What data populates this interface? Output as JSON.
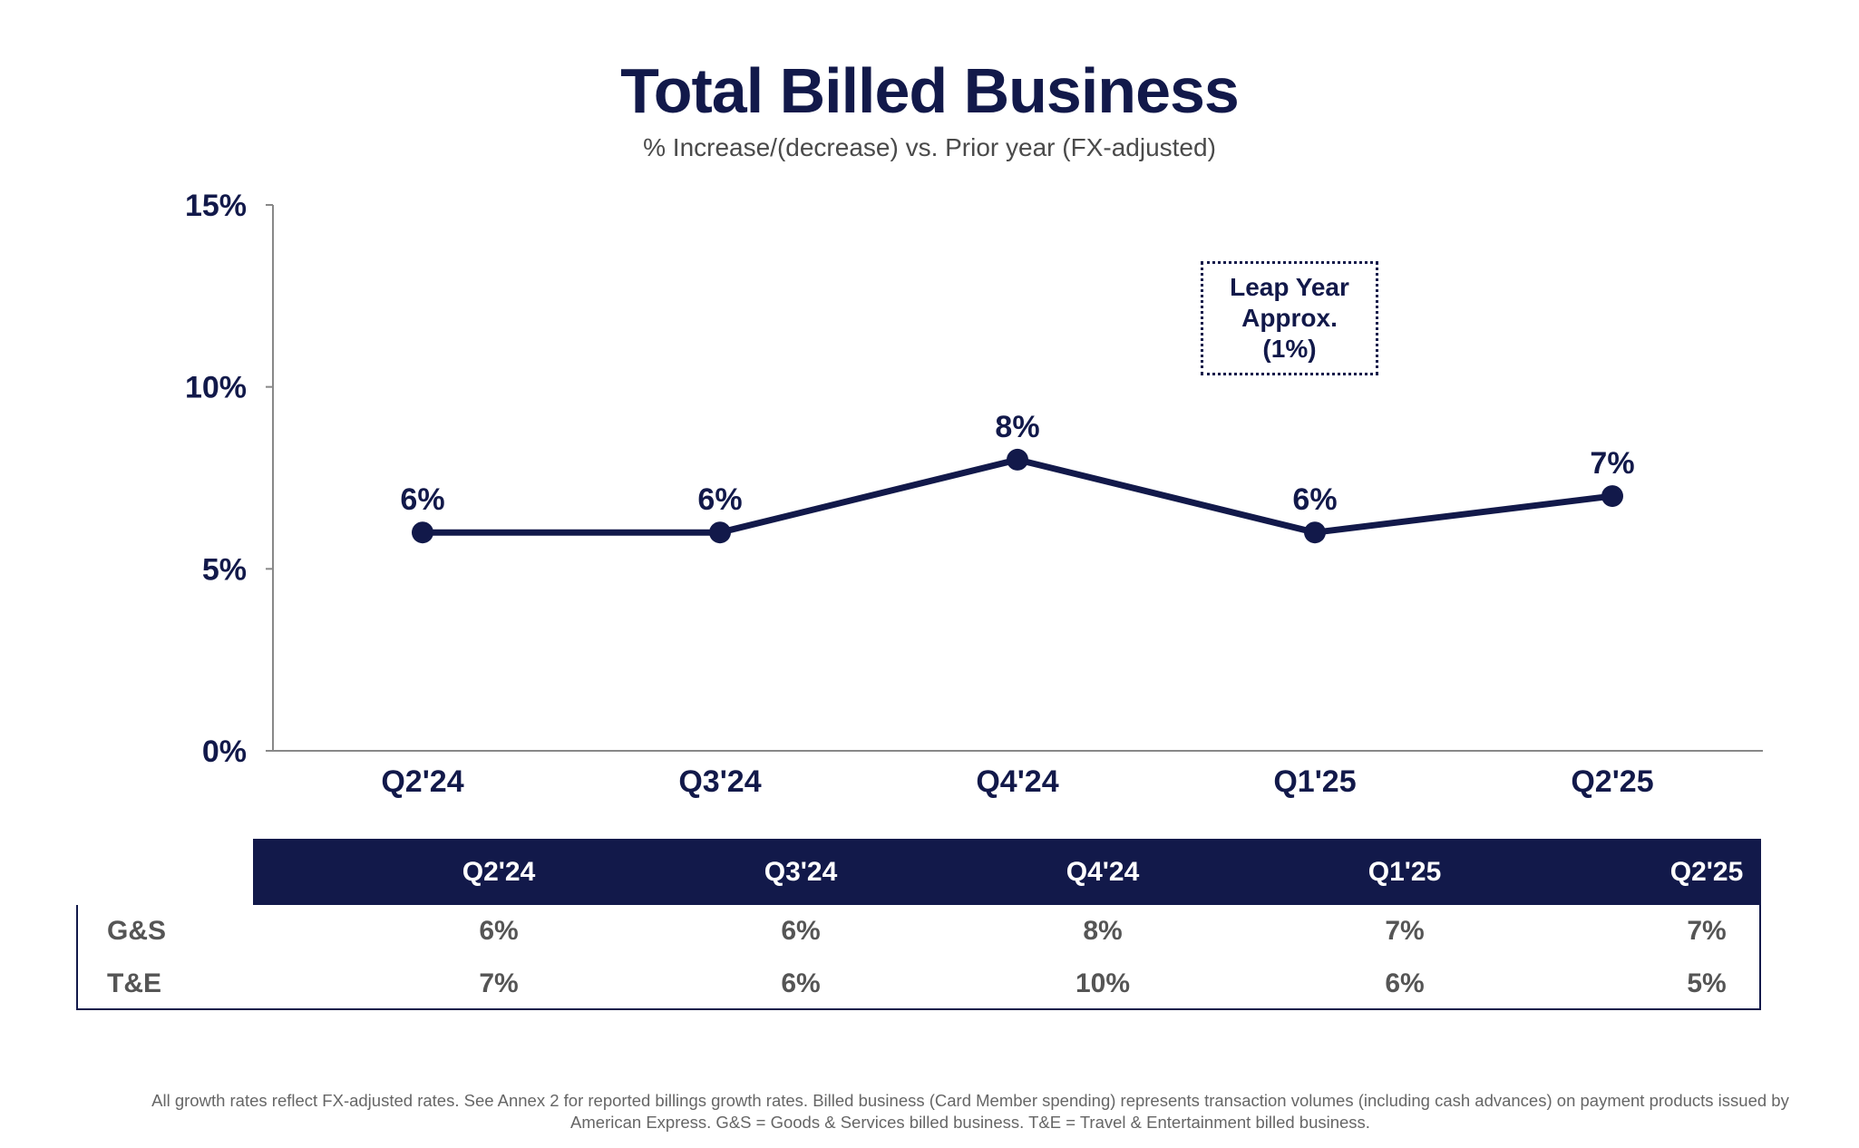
{
  "header": {
    "title": "Total Billed Business",
    "subtitle": "% Increase/(decrease) vs. Prior year (FX-adjusted)"
  },
  "chart_data": {
    "type": "line",
    "categories": [
      "Q2'24",
      "Q3'24",
      "Q4'24",
      "Q1'25",
      "Q2'25"
    ],
    "series": [
      {
        "values": [
          6,
          6,
          8,
          6,
          7
        ],
        "data_labels": [
          "6%",
          "6%",
          "8%",
          "6%",
          "7%"
        ]
      }
    ],
    "ylim": [
      0,
      15
    ],
    "yticks": [
      0,
      5,
      10,
      15
    ],
    "ytick_labels": [
      "0%",
      "5%",
      "10%",
      "15%"
    ],
    "grid": false,
    "annotation": "Leap Year\nApprox.\n(1%)",
    "line_color": "#12194a"
  },
  "table": {
    "columns": [
      "Q2'24",
      "Q3'24",
      "Q4'24",
      "Q1'25",
      "Q2'25"
    ],
    "rows": [
      {
        "label": "G&S",
        "values": [
          "6%",
          "6%",
          "8%",
          "7%",
          "7%"
        ]
      },
      {
        "label": "T&E",
        "values": [
          "7%",
          "6%",
          "10%",
          "6%",
          "5%"
        ]
      }
    ],
    "header_color": "#12194a"
  },
  "footnote": "All growth rates reflect FX-adjusted rates. See Annex 2 for reported billings growth rates. Billed business (Card Member spending) represents transaction volumes (including cash advances) on payment products issued by American Express. G&S = Goods & Services billed business. T&E = Travel & Entertainment billed business."
}
